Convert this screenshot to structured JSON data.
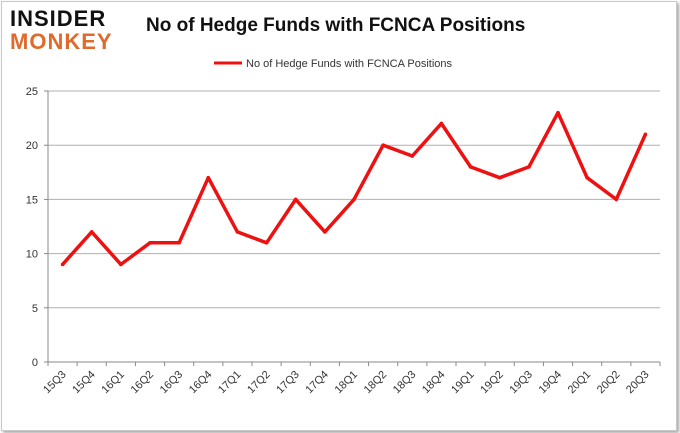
{
  "brand": {
    "line1": "INSIDER",
    "line2": "MONKEY"
  },
  "chart_data": {
    "type": "line",
    "title": "No of Hedge Funds with FCNCA Positions",
    "xlabel": "",
    "ylabel": "",
    "categories": [
      "15Q3",
      "15Q4",
      "16Q1",
      "16Q2",
      "16Q3",
      "16Q4",
      "17Q1",
      "17Q2",
      "17Q3",
      "17Q4",
      "18Q1",
      "18Q2",
      "18Q3",
      "18Q4",
      "19Q1",
      "19Q2",
      "19Q3",
      "19Q4",
      "20Q1",
      "20Q2",
      "20Q3"
    ],
    "series": [
      {
        "name": "No of Hedge Funds with FCNCA  Positions",
        "color": "#ee1111",
        "values": [
          9,
          12,
          9,
          11,
          11,
          17,
          12,
          11,
          15,
          12,
          15,
          20,
          19,
          22,
          18,
          17,
          18,
          23,
          17,
          15,
          21
        ]
      }
    ],
    "ylim": [
      0,
      25
    ],
    "yticks": [
      0,
      5,
      10,
      15,
      20,
      25
    ],
    "grid": true,
    "legend": "top-center"
  }
}
